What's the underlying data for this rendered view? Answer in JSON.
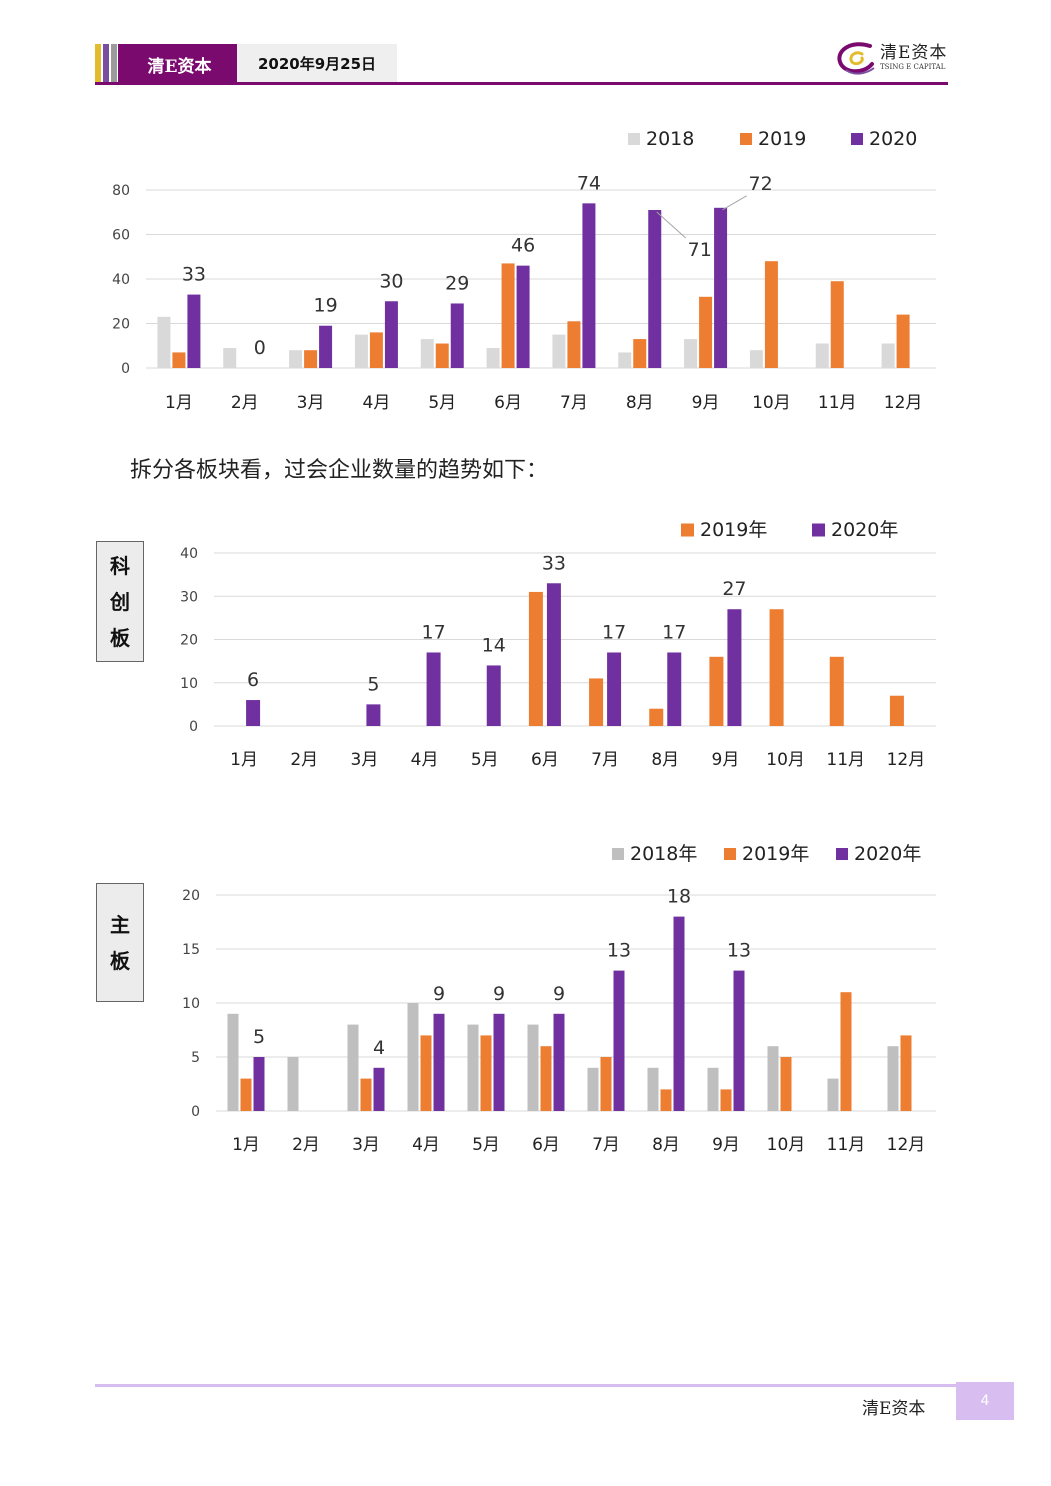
{
  "header": {
    "brand": "清E资本",
    "date": "2020年9月25日",
    "logo_cn": "清E资本",
    "logo_en": "TSING E CAPITAL",
    "colors": {
      "purple": "#7B0A6E",
      "gold": "#E3BC2D",
      "violet": "#7A4FA0",
      "gray": "#9B9B9B",
      "light_violet": "#D7BDF0"
    }
  },
  "body_text": "拆分各板块看，过会企业数量的趋势如下：",
  "footer": {
    "brand": "清E资本",
    "page": "4"
  },
  "chart_data": [
    {
      "type": "bar",
      "categories": [
        "1月",
        "2月",
        "3月",
        "4月",
        "5月",
        "6月",
        "7月",
        "8月",
        "9月",
        "10月",
        "11月",
        "12月"
      ],
      "series": [
        {
          "name": "2018",
          "color": "#D9D9D9",
          "values": [
            23,
            9,
            8,
            15,
            13,
            9,
            15,
            7,
            13,
            8,
            11,
            11
          ]
        },
        {
          "name": "2019",
          "color": "#ED7D31",
          "values": [
            7,
            null,
            8,
            16,
            11,
            47,
            21,
            13,
            32,
            48,
            39,
            24
          ]
        },
        {
          "name": "2020",
          "color": "#7030A0",
          "values": [
            33,
            0,
            19,
            30,
            29,
            46,
            74,
            71,
            72,
            null,
            null,
            null
          ],
          "labels": [
            "33",
            "0",
            "19",
            "30",
            "29",
            "46",
            "74",
            "71",
            "72",
            null,
            null,
            null
          ]
        }
      ],
      "yticks": [
        "0",
        "20",
        "40",
        "60",
        "80"
      ],
      "ylim": [
        0,
        80
      ],
      "legend": "top-right",
      "grid": true
    },
    {
      "type": "bar",
      "board_label": [
        "科",
        "创",
        "板"
      ],
      "categories": [
        "1月",
        "2月",
        "3月",
        "4月",
        "5月",
        "6月",
        "7月",
        "8月",
        "9月",
        "10月",
        "11月",
        "12月"
      ],
      "series": [
        {
          "name": "2019年",
          "color": "#ED7D31",
          "values": [
            null,
            null,
            null,
            null,
            null,
            31,
            11,
            4,
            16,
            27,
            16,
            7
          ]
        },
        {
          "name": "2020年",
          "color": "#7030A0",
          "values": [
            6,
            null,
            5,
            17,
            14,
            33,
            17,
            17,
            27,
            null,
            null,
            null
          ],
          "labels": [
            "6",
            null,
            "5",
            "17",
            "14",
            "33",
            "17",
            "17",
            "27",
            null,
            null,
            null
          ]
        }
      ],
      "yticks": [
        "0",
        "10",
        "20",
        "30",
        "40"
      ],
      "ylim": [
        0,
        40
      ],
      "legend": "top-right",
      "grid": true
    },
    {
      "type": "bar",
      "board_label": [
        "主",
        "板"
      ],
      "categories": [
        "1月",
        "2月",
        "3月",
        "4月",
        "5月",
        "6月",
        "7月",
        "8月",
        "9月",
        "10月",
        "11月",
        "12月"
      ],
      "series": [
        {
          "name": "2018年",
          "color": "#BFBFBF",
          "values": [
            9,
            5,
            8,
            10,
            8,
            8,
            4,
            4,
            4,
            6,
            3,
            6
          ]
        },
        {
          "name": "2019年",
          "color": "#ED7D31",
          "values": [
            3,
            null,
            3,
            7,
            7,
            6,
            5,
            2,
            2,
            5,
            11,
            7
          ]
        },
        {
          "name": "2020年",
          "color": "#7030A0",
          "values": [
            5,
            null,
            4,
            9,
            9,
            9,
            13,
            18,
            13,
            null,
            null,
            null
          ],
          "labels": [
            "5",
            null,
            "4",
            "9",
            "9",
            "9",
            "13",
            "18",
            "13",
            null,
            null,
            null
          ]
        }
      ],
      "yticks": [
        "0",
        "5",
        "10",
        "15",
        "20"
      ],
      "ylim": [
        0,
        20
      ],
      "legend": "top-right",
      "grid": true
    }
  ]
}
